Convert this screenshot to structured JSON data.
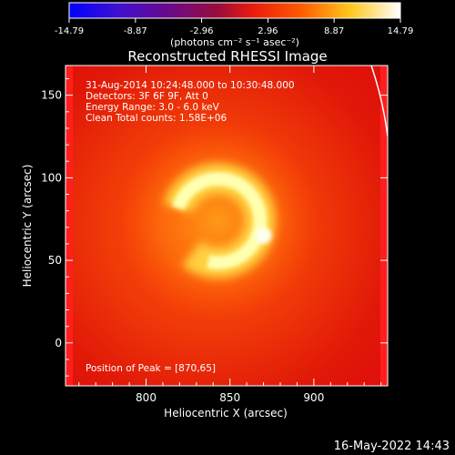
{
  "chart_data": {
    "type": "heatmap",
    "title": "Reconstructed RHESSI Image",
    "xlabel": "Heliocentric X (arcsec)",
    "ylabel": "Heliocentric Y (arcsec)",
    "xlim": [
      752,
      944
    ],
    "ylim": [
      -26,
      168
    ],
    "x_ticks": [
      800,
      850,
      900
    ],
    "y_ticks": [
      0,
      50,
      100,
      150
    ],
    "colorbar": {
      "min": -14.79,
      "max": 14.79,
      "ticks": [
        "-14.79",
        "-8.87",
        "-2.96",
        "2.96",
        "8.87",
        "14.79"
      ],
      "unit_label": "(photons cm⁻² s⁻¹ asec⁻²)"
    },
    "annotations": [
      "31-Aug-2014 10:24:48.000 to 10:30:48.000",
      "Detectors: 3F 6F 9F, Att 0",
      "Energy Range: 3.0 - 6.0 keV",
      "Clean    Total counts: 1.58E+06"
    ],
    "peak_label": "Position of Peak = [870,65]",
    "source": {
      "center": [
        843,
        74
      ],
      "radius": 25,
      "peak": [
        870,
        65
      ]
    },
    "timestamp": "16-May-2022 14:43"
  },
  "colors": {
    "background": "#000000",
    "image_base": "#e8200a",
    "edge": "#ff1e1e",
    "ring": "#ffffd0"
  }
}
